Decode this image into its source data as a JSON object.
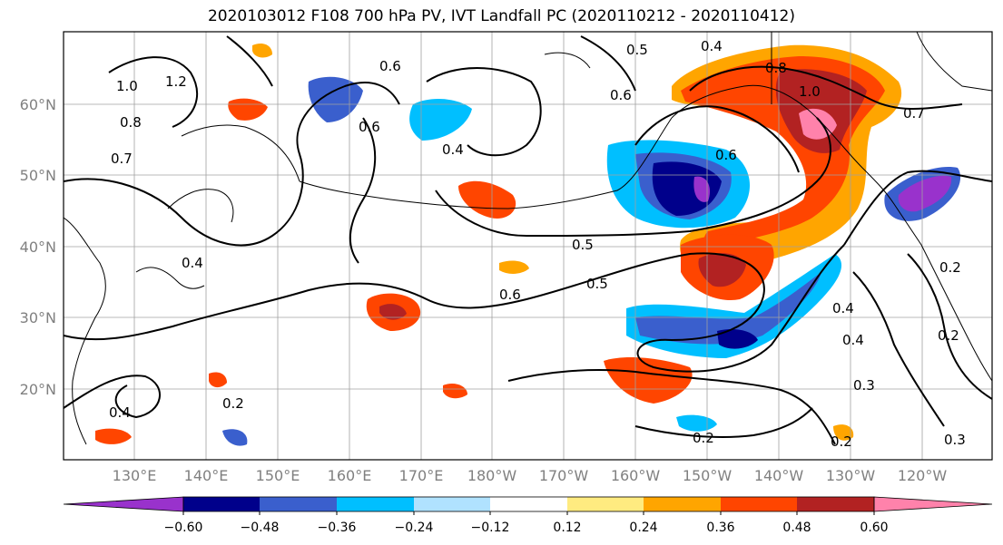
{
  "title": "2020103012 F108 700 hPa PV, IVT Landfall PC (2020110212 - 2020110412)",
  "lon_labels": [
    "130°E",
    "140°E",
    "150°E",
    "160°E",
    "170°E",
    "180°W",
    "170°W",
    "160°W",
    "150°W",
    "140°W",
    "130°W",
    "120°W"
  ],
  "lat_labels": [
    "60°N",
    "50°N",
    "40°N",
    "30°N",
    "20°N"
  ],
  "contour_labels": [
    "1.2",
    "1.0",
    "0.8",
    "0.7",
    "0.6",
    "0.6",
    "0.6",
    "0.5",
    "0.5",
    "0.5",
    "0.4",
    "0.4",
    "0.4",
    "0.4",
    "0.4",
    "0.2",
    "0.2",
    "0.2",
    "0.3",
    "0.3",
    "0.2",
    "0.8",
    "1.0",
    "0.6",
    "0.7",
    "0.6",
    "0.2",
    "0.4"
  ],
  "colorbar": {
    "ticks": [
      "−0.60",
      "−0.48",
      "−0.36",
      "−0.24",
      "−0.12",
      "0.12",
      "0.24",
      "0.36",
      "0.48",
      "0.60"
    ],
    "colors": [
      "#9932cc",
      "#00008b",
      "#3a5fcd",
      "#00bfff",
      "#b0e2ff",
      "#ffffff",
      "#ffeb80",
      "#ffa500",
      "#ff4500",
      "#b22222",
      "#ff82ab"
    ]
  },
  "colors": {
    "neg_strong": "#9932cc",
    "neg_1": "#00008b",
    "neg_2": "#3a5fcd",
    "neg_3": "#00bfff",
    "neg_4": "#b0e2ff",
    "pos_1": "#ffeb80",
    "pos_2": "#ffa500",
    "pos_3": "#ff4500",
    "pos_4": "#b22222",
    "pos_strong": "#ff82ab"
  }
}
